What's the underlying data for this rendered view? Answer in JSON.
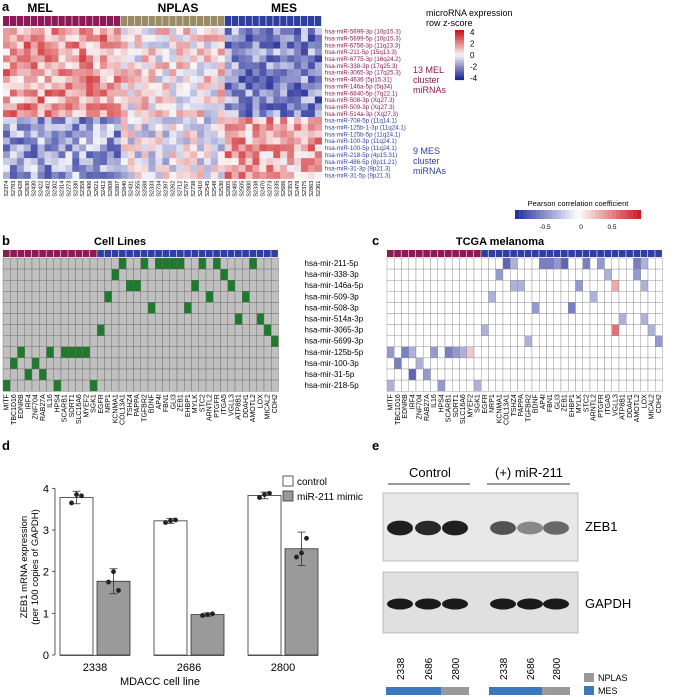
{
  "panel_labels": {
    "a": "a",
    "b": "b",
    "c": "c",
    "d": "d",
    "e": "e"
  },
  "panel_a": {
    "groups": [
      "MEL",
      "NPLAS",
      "MES"
    ],
    "group_colors": {
      "MEL": "#8b1a55",
      "NPLAS": "#9b8c68",
      "MES": "#2f3fa0"
    },
    "group_counts": [
      17,
      15,
      14
    ],
    "rows": [
      "hsa-miR-5699-3p (10p15.3)",
      "hsa-miR-5699-5p (10p15.3)",
      "hsa-miR-6756-3p (11q23.3)",
      "hsa-miR-211-5p (15q13.3)",
      "hsa-miR-6775-3p (16q24.2)",
      "hsa-miR-338-3p (17q25.3)",
      "hsa-miR-3065-3p (17q25.3)",
      "hsa-miR-4636 (5p15.31)",
      "hsa-miR-146a-5p (5q34)",
      "hsa-miR-6840-5p (7q22.1)",
      "hsa-miR-508-3p (Xq27.3)",
      "hsa-miR-509-3p (Xq27.3)",
      "hsa-miR-514a-3p (Xq27.3)",
      "hsa-miR-708-5p (11q14.1)",
      "hsa-miR-125b-1-3p (11q24.1)",
      "hsa-miR-125b-5p (11q24.1)",
      "hsa-miR-100-3p (11q24.1)",
      "hsa-miR-100-5p (11q24.1)",
      "hsa-miR-218-5p (4p15.31)",
      "hsa-miR-486-5p (8p11.21)",
      "hsa-miR-31-3p (9p21.3)",
      "hsa-miR-31-5p (9p21.3)"
    ],
    "samples": [
      "S2374",
      "S2783",
      "S2428",
      "S2630",
      "S2430",
      "S2422",
      "S2402",
      "S2302",
      "S2314",
      "S2273",
      "S2330",
      "S2358",
      "S2406",
      "S2621",
      "S2412",
      "S2808",
      "S2807",
      "S2840",
      "S2431",
      "S2355",
      "S2588",
      "S2333",
      "S2734",
      "S2397",
      "S2262",
      "S2712",
      "S2767",
      "S2738",
      "S2410",
      "S2545",
      "S2549",
      "S2530",
      "S2805",
      "S2485",
      "S2505",
      "S2800",
      "S2338",
      "S2470",
      "S2373",
      "S2335",
      "S2686",
      "S2353",
      "S2479",
      "S2375",
      "S2863",
      "S2361"
    ],
    "legend_title": "microRNA expression row z-score",
    "legend_ticks": [
      "4",
      "2",
      "0",
      "-2",
      "-4"
    ],
    "annot_mel": "13 MEL cluster miRNAs",
    "annot_mes": "9 MES cluster miRNAs",
    "mel_row_color": "#8b1a55",
    "mes_row_color": "#2f3fa0"
  },
  "pearson_legend": {
    "title": "Pearson correlation coefficient",
    "ticks": [
      "-0.5",
      "0",
      "0.5"
    ]
  },
  "panel_b": {
    "title": "Cell Lines",
    "mirnas": [
      "hsa-mir-211-5p",
      "hsa-mir-338-3p",
      "hsa-mir-146a-5p",
      "hsa-mir-509-3p",
      "hsa-mir-508-3p",
      "hsa-mir-514a-3p",
      "hsa-mir-3065-3p",
      "hsa-mir-5699-3p",
      "hsa-mir-125b-5p",
      "hsa-mir-100-3p",
      "hsa-mir-31-5p",
      "hsa-mir-218-5p"
    ],
    "genes": [
      "MITF",
      "TBC1D16",
      "EDNRB",
      "IRF4",
      "ZNF704",
      "RAB27A",
      "IL16",
      "HPS4",
      "SCARB1",
      "SORT1",
      "SLC16A6",
      "MYEF2",
      "SGK1",
      "EGFR",
      "NRP1",
      "KCNMA1",
      "COL13A1",
      "TSHZ4",
      "PAPPA",
      "TGFBR2",
      "BDNF",
      "AP4I",
      "FBN1",
      "GLI3",
      "ZEB1",
      "EHBP1",
      "MYLK",
      "STC2",
      "ARNTL2",
      "PTGFR",
      "ITGA5",
      "VGLL3",
      "ATP8B1",
      "DDAH1",
      "AMOTL2",
      "LOX",
      "MICAL2",
      "CDH2"
    ],
    "green_cells": [
      [
        0,
        16
      ],
      [
        0,
        19
      ],
      [
        0,
        21
      ],
      [
        0,
        22
      ],
      [
        0,
        23
      ],
      [
        0,
        24
      ],
      [
        0,
        27
      ],
      [
        0,
        29
      ],
      [
        0,
        34
      ],
      [
        1,
        15
      ],
      [
        1,
        30
      ],
      [
        2,
        17
      ],
      [
        2,
        18
      ],
      [
        2,
        26
      ],
      [
        2,
        31
      ],
      [
        3,
        14
      ],
      [
        3,
        28
      ],
      [
        3,
        33
      ],
      [
        4,
        20
      ],
      [
        4,
        25
      ],
      [
        5,
        32
      ],
      [
        5,
        35
      ],
      [
        6,
        13
      ],
      [
        6,
        36
      ],
      [
        7,
        37
      ],
      [
        8,
        2
      ],
      [
        8,
        6
      ],
      [
        8,
        8
      ],
      [
        8,
        9
      ],
      [
        8,
        10
      ],
      [
        8,
        11
      ],
      [
        9,
        1
      ],
      [
        9,
        4
      ],
      [
        10,
        3
      ],
      [
        10,
        5
      ],
      [
        11,
        0
      ],
      [
        11,
        12
      ],
      [
        11,
        7
      ]
    ],
    "green_color": "#1e7a2c",
    "gray_color": "#c0c0c0"
  },
  "panel_c": {
    "title": "TCGA melanoma",
    "mirnas": [
      "hsa-mir-211-5p",
      "hsa-mir-338-3p",
      "hsa-mir-146a-5p",
      "hsa-mir-509-3p",
      "hsa-mir-508-3p",
      "hsa-mir-514a-3p",
      "hsa-mir-3065-3p",
      "hsa-mir-5699-3p",
      "hsa-mir-125b-5p",
      "hsa-mir-100-3p",
      "hsa-mir-31-5p",
      "hsa-mir-218-5p"
    ],
    "genes": [
      "MITF",
      "TBC1D16",
      "EDNRB",
      "IRF4",
      "ZNF704",
      "RAB27A",
      "IL16",
      "HPS4",
      "SCARB1",
      "SORT1",
      "SLC16A6",
      "MYEF2",
      "SGK1",
      "EGFR",
      "NRP1",
      "KCNMA1",
      "COL13A1",
      "TSHZ4",
      "PAPPA",
      "TGFBR2",
      "BDNF",
      "AP4I",
      "FBN1",
      "GLI3",
      "ZEB1",
      "EHBP1",
      "MYLK",
      "STC2",
      "ARNTL2",
      "PTGFR",
      "ITGA5",
      "VGLL3",
      "ATP8B1",
      "DDAH1",
      "AMOTL2",
      "LOX",
      "MICAL2",
      "CDH2"
    ],
    "corr_cells": [
      [
        0,
        16,
        -0.6
      ],
      [
        0,
        21,
        -0.5
      ],
      [
        0,
        22,
        -0.5
      ],
      [
        0,
        23,
        -0.4
      ],
      [
        0,
        24,
        -0.6
      ],
      [
        0,
        27,
        -0.5
      ],
      [
        0,
        29,
        -0.4
      ],
      [
        0,
        34,
        -0.5
      ],
      [
        0,
        35,
        -0.3
      ],
      [
        0,
        17,
        -0.3
      ],
      [
        1,
        15,
        -0.4
      ],
      [
        1,
        30,
        -0.3
      ],
      [
        1,
        34,
        -0.4
      ],
      [
        2,
        17,
        -0.3
      ],
      [
        2,
        18,
        -0.3
      ],
      [
        2,
        26,
        -0.4
      ],
      [
        2,
        31,
        0.3
      ],
      [
        2,
        35,
        -0.3
      ],
      [
        3,
        14,
        -0.3
      ],
      [
        3,
        28,
        -0.3
      ],
      [
        4,
        20,
        -0.4
      ],
      [
        4,
        25,
        -0.5
      ],
      [
        5,
        32,
        -0.3
      ],
      [
        5,
        35,
        -0.3
      ],
      [
        6,
        13,
        -0.3
      ],
      [
        6,
        31,
        0.5
      ],
      [
        6,
        36,
        -0.3
      ],
      [
        7,
        37,
        -0.4
      ],
      [
        7,
        19,
        -0.3
      ],
      [
        8,
        0,
        -0.4
      ],
      [
        8,
        2,
        -0.5
      ],
      [
        8,
        3,
        -0.3
      ],
      [
        8,
        6,
        -0.4
      ],
      [
        8,
        8,
        -0.5
      ],
      [
        8,
        9,
        -0.4
      ],
      [
        8,
        10,
        -0.3
      ],
      [
        8,
        11,
        0.2
      ],
      [
        9,
        1,
        -0.5
      ],
      [
        9,
        4,
        -0.3
      ],
      [
        10,
        3,
        -0.6
      ],
      [
        10,
        5,
        -0.4
      ],
      [
        11,
        0,
        -0.3
      ],
      [
        11,
        7,
        -0.4
      ],
      [
        11,
        12,
        -0.3
      ]
    ]
  },
  "panel_d": {
    "ylabel_line1": "ZEB1 mRNA expression",
    "ylabel_line2": "(per 100 copies of GAPDH)",
    "xlabel": "MDACC cell line",
    "y_ticks": [
      "0",
      "1",
      "2",
      "3",
      "4"
    ],
    "legend": [
      "control",
      "miR-211 mimic"
    ],
    "chart_data": {
      "type": "bar",
      "categories": [
        "2338",
        "2686",
        "2800"
      ],
      "series": [
        {
          "name": "control",
          "values": [
            3.78,
            3.22,
            3.83
          ],
          "errors": [
            0.15,
            0.06,
            0.08
          ],
          "points": [
            [
              3.65,
              3.85,
              3.82
            ],
            [
              3.18,
              3.22,
              3.24
            ],
            [
              3.78,
              3.85,
              3.88
            ]
          ]
        },
        {
          "name": "miR-211 mimic",
          "values": [
            1.77,
            0.97,
            2.55
          ],
          "errors": [
            0.3,
            0.04,
            0.4
          ],
          "points": [
            [
              1.75,
              2.0,
              1.55
            ],
            [
              0.95,
              0.97,
              0.99
            ],
            [
              2.35,
              2.45,
              2.8
            ]
          ]
        }
      ],
      "ylim": [
        0,
        4.2
      ],
      "xlabel": "MDACC cell line",
      "ylabel": "ZEB1 mRNA expression (per 100 copies of GAPDH)",
      "colors": {
        "control": "#ffffff",
        "miR-211 mimic": "#999999"
      }
    }
  },
  "panel_e": {
    "control_label": "Control",
    "treatment_label": "(+) miR-211",
    "blot_labels": [
      "ZEB1",
      "GAPDH"
    ],
    "lane_labels": [
      "2338",
      "2686",
      "2800",
      "2338",
      "2686",
      "2800"
    ],
    "zeb1_intensity": [
      0.95,
      0.9,
      0.95,
      0.7,
      0.45,
      0.6
    ],
    "gapdh_intensity": [
      0.95,
      0.95,
      0.95,
      0.95,
      0.95,
      0.95
    ],
    "subtype_legend": [
      "NPLAS",
      "MES"
    ],
    "subtype_colors": {
      "NPLAS": "#9a9a9a",
      "MES": "#3a78c0"
    },
    "lane_subtypes": [
      "MES",
      "MES",
      "NPLAS",
      "MES",
      "MES",
      "NPLAS"
    ]
  }
}
